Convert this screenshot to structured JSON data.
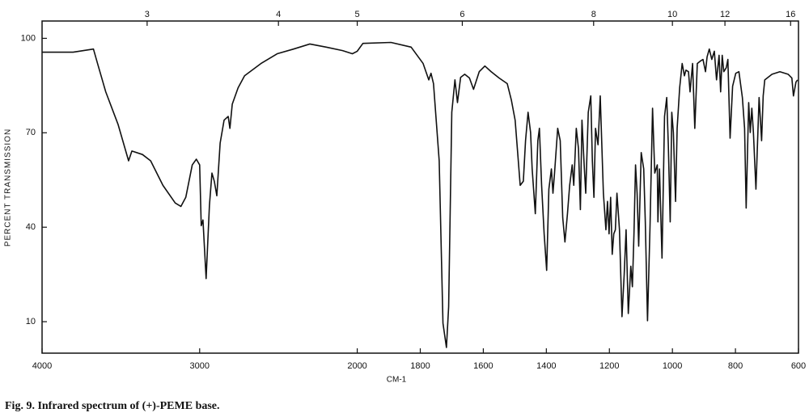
{
  "chart_data": {
    "type": "line",
    "caption": "Fig. 9. Infrared spectrum of (+)-PEME base.",
    "xlabel": "CM-1",
    "ylabel": "PERCENT TRANSMISSION",
    "xlim": [
      4000,
      600
    ],
    "x_scale_break": 2000,
    "ylim": [
      0,
      105.5
    ],
    "xticks": [
      4000,
      3000,
      2000,
      1800,
      1600,
      1400,
      1200,
      1000,
      800,
      600
    ],
    "x2ticks": [
      {
        "value": 3333.33,
        "label": "3"
      },
      {
        "value": 2500,
        "label": "4"
      },
      {
        "value": 2000,
        "label": "5"
      },
      {
        "value": 1666.67,
        "label": "6"
      },
      {
        "value": 1250,
        "label": "8"
      },
      {
        "value": 1000,
        "label": "10"
      },
      {
        "value": 833.33,
        "label": "12"
      },
      {
        "value": 625,
        "label": "16"
      }
    ],
    "yticks": [
      10,
      40,
      70,
      100
    ],
    "color": "#111111",
    "x": [
      4000,
      3803,
      3674,
      3648,
      3596,
      3518,
      3451,
      3430,
      3363,
      3311,
      3233,
      3155,
      3119,
      3088,
      3047,
      3021,
      3000,
      2990,
      2979,
      2959,
      2938,
      2922,
      2907,
      2891,
      2870,
      2845,
      2819,
      2808,
      2793,
      2756,
      2715,
      2611,
      2508,
      2404,
      2301,
      2197,
      2093,
      2031,
      2000,
      1982,
      1893,
      1829,
      1791,
      1773,
      1766,
      1758,
      1740,
      1728,
      1717,
      1710,
      1700,
      1690,
      1682,
      1672,
      1659,
      1644,
      1631,
      1613,
      1595,
      1575,
      1550,
      1524,
      1511,
      1499,
      1491,
      1483,
      1473,
      1466,
      1458,
      1450,
      1445,
      1435,
      1427,
      1422,
      1415,
      1407,
      1399,
      1392,
      1384,
      1379,
      1374,
      1364,
      1356,
      1348,
      1341,
      1333,
      1326,
      1318,
      1313,
      1305,
      1298,
      1292,
      1287,
      1280,
      1275,
      1267,
      1259,
      1254,
      1249,
      1244,
      1236,
      1229,
      1219,
      1211,
      1206,
      1201,
      1196,
      1191,
      1186,
      1181,
      1176,
      1168,
      1160,
      1153,
      1147,
      1140,
      1132,
      1127,
      1122,
      1117,
      1112,
      1107,
      1099,
      1091,
      1086,
      1079,
      1071,
      1063,
      1056,
      1048,
      1046,
      1041,
      1033,
      1025,
      1018,
      1013,
      1007,
      1002,
      997,
      990,
      985,
      977,
      969,
      962,
      957,
      949,
      944,
      936,
      929,
      921,
      911,
      903,
      895,
      890,
      883,
      875,
      867,
      860,
      852,
      847,
      842,
      837,
      829,
      824,
      817,
      809,
      799,
      789,
      778,
      771,
      766,
      758,
      753,
      748,
      743,
      735,
      725,
      717,
      712,
      707,
      684,
      659,
      633,
      621,
      616,
      608,
      603
    ],
    "values": [
      95.6,
      95.6,
      96.6,
      92,
      83,
      72.7,
      61.1,
      64.2,
      63.1,
      61.1,
      53.3,
      47.7,
      46.6,
      49.5,
      59.8,
      61.6,
      59.8,
      40.5,
      42.3,
      23.7,
      46.9,
      57.2,
      54.6,
      50,
      66.7,
      74,
      75.2,
      71.4,
      79.1,
      84.3,
      88.1,
      92,
      95.1,
      96.6,
      98.2,
      97.2,
      96.1,
      95.1,
      95.9,
      98.4,
      98.7,
      97.2,
      92,
      86.8,
      88.9,
      85.6,
      61.1,
      9.5,
      1.8,
      14.7,
      76.5,
      86.8,
      79.6,
      87.6,
      88.6,
      87.4,
      83.8,
      89.4,
      91.2,
      89.4,
      87.4,
      85.6,
      80.4,
      74,
      63.7,
      53.3,
      54.6,
      67.5,
      76.5,
      70.1,
      58.5,
      44.3,
      67.5,
      71.4,
      53.3,
      37.9,
      26.3,
      52.1,
      58.5,
      50.8,
      57.2,
      71.4,
      67.5,
      43,
      35.3,
      44.3,
      53.3,
      59.8,
      53.3,
      71.4,
      65,
      45.6,
      74,
      59.8,
      50.8,
      76.5,
      81.7,
      61.1,
      49.5,
      71.4,
      66.2,
      81.7,
      50.8,
      39.2,
      48.2,
      37.9,
      49.5,
      31.4,
      37.9,
      39.2,
      50.8,
      39.2,
      11.6,
      25,
      39.2,
      12.6,
      27.6,
      21.1,
      37.9,
      59.8,
      50.8,
      34,
      63.7,
      58.5,
      41.7,
      10.3,
      40.5,
      77.8,
      57.2,
      59.8,
      41.7,
      58.5,
      30.2,
      75.2,
      81.2,
      66.2,
      41.7,
      76.5,
      70.1,
      48.2,
      71.4,
      84.3,
      92,
      88.1,
      89.9,
      89.4,
      83,
      92,
      71.4,
      92,
      92.8,
      93.3,
      89.4,
      94.1,
      96.6,
      93.3,
      95.9,
      86.8,
      94.6,
      83,
      94.6,
      89.4,
      90.7,
      93.3,
      68.3,
      84.8,
      88.9,
      89.4,
      81.2,
      71.4,
      46.1,
      79.6,
      70.1,
      77.8,
      70.1,
      52.1,
      81.2,
      67.5,
      81.7,
      86.8,
      88.6,
      89.4,
      88.6,
      87.4,
      81.7,
      86.1,
      86.8
    ]
  }
}
